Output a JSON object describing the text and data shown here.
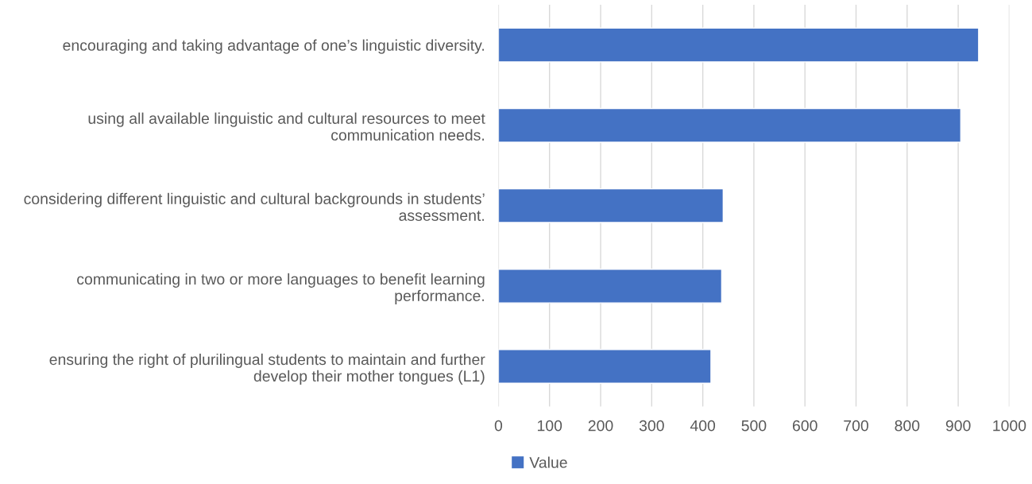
{
  "chart_data": {
    "type": "bar",
    "orientation": "horizontal",
    "categories": [
      "encouraging and taking advantage of one’s linguistic diversity.",
      "using all available linguistic and cultural resources to meet\ncommunication needs.",
      "considering different linguistic and cultural backgrounds in students’\nassessment.",
      "communicating in two or more languages to benefit learning\nperformance.",
      "ensuring the right of plurilingual students to maintain and further\ndevelop their mother tongues (L1)"
    ],
    "series": [
      {
        "name": "Value",
        "color": "#4472c4",
        "values": [
          940,
          905,
          440,
          437,
          416
        ]
      }
    ],
    "xlim": [
      0,
      1000
    ],
    "xticks": [
      0,
      100,
      200,
      300,
      400,
      500,
      600,
      700,
      800,
      900,
      1000
    ],
    "grid": "x",
    "legend": "bottom"
  }
}
